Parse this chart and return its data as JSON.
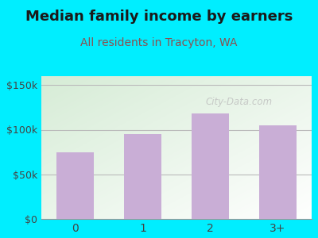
{
  "title": "Median family income by earners",
  "subtitle": "All residents in Tracyton, WA",
  "categories": [
    "0",
    "1",
    "2",
    "3+"
  ],
  "values": [
    75000,
    95000,
    118000,
    105000
  ],
  "bar_color": "#c9aed6",
  "yticks": [
    0,
    50000,
    100000,
    150000
  ],
  "ytick_labels": [
    "$0",
    "$50k",
    "$100k",
    "$150k"
  ],
  "ylim": [
    0,
    160000
  ],
  "outer_bg": "#00eeff",
  "plot_bg_topleft": "#d6ecd6",
  "plot_bg_bottomright": "#ffffff",
  "title_color": "#1a1a1a",
  "subtitle_color": "#8b5050",
  "watermark": "City-Data.com",
  "title_fontsize": 13,
  "subtitle_fontsize": 10
}
